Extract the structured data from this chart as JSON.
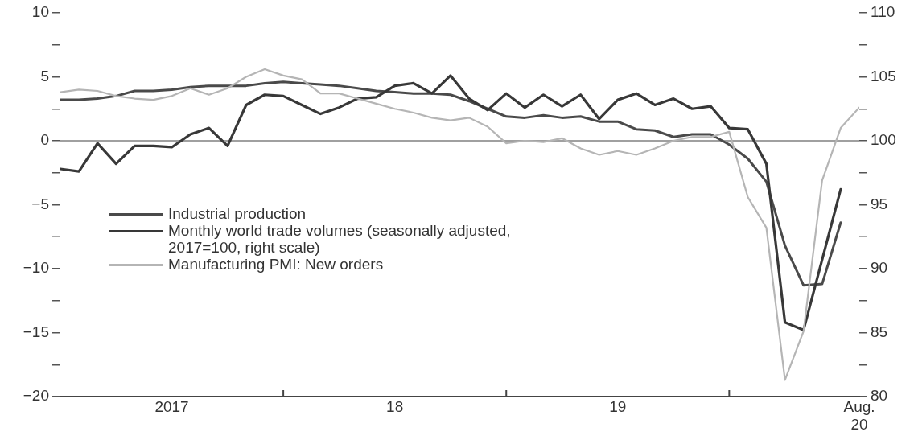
{
  "chart_data": {
    "type": "line",
    "x": [
      "2017-01",
      "2017-02",
      "2017-03",
      "2017-04",
      "2017-05",
      "2017-06",
      "2017-07",
      "2017-08",
      "2017-09",
      "2017-10",
      "2017-11",
      "2017-12",
      "2018-01",
      "2018-02",
      "2018-03",
      "2018-04",
      "2018-05",
      "2018-06",
      "2018-07",
      "2018-08",
      "2018-09",
      "2018-10",
      "2018-11",
      "2018-12",
      "2019-01",
      "2019-02",
      "2019-03",
      "2019-04",
      "2019-05",
      "2019-06",
      "2019-07",
      "2019-08",
      "2019-09",
      "2019-10",
      "2019-11",
      "2019-12",
      "2020-01",
      "2020-02",
      "2020-03",
      "2020-04",
      "2020-05",
      "2020-06",
      "2020-07",
      "2020-08"
    ],
    "series": [
      {
        "name": "Industrial production",
        "color": "#4a4a4a",
        "values": [
          3.2,
          3.2,
          3.3,
          3.5,
          3.9,
          3.9,
          4.0,
          4.2,
          4.3,
          4.3,
          4.3,
          4.5,
          4.6,
          4.5,
          4.4,
          4.3,
          4.1,
          3.9,
          3.8,
          3.7,
          3.7,
          3.6,
          3.1,
          2.5,
          1.9,
          1.8,
          2.0,
          1.8,
          1.9,
          1.5,
          1.5,
          0.9,
          0.8,
          0.3,
          0.5,
          0.5,
          -0.3,
          -1.4,
          -3.2,
          -8.2,
          -11.3,
          -11.2,
          -6.4,
          null
        ]
      },
      {
        "name": "Monthly world trade volumes (seasonally adjusted, 2017=100, right scale)",
        "color": "#383838",
        "axis": "y2",
        "values": [
          97.8,
          97.6,
          99.8,
          98.2,
          99.6,
          99.6,
          99.5,
          100.5,
          101.0,
          99.6,
          102.8,
          103.6,
          103.5,
          102.8,
          102.1,
          102.6,
          103.3,
          103.4,
          104.3,
          104.5,
          103.7,
          105.1,
          103.3,
          102.4,
          103.7,
          102.6,
          103.6,
          102.7,
          103.6,
          101.7,
          103.2,
          103.7,
          102.8,
          103.3,
          102.5,
          102.7,
          101.0,
          100.9,
          98.2,
          85.8,
          85.2,
          90.7,
          96.2,
          null
        ]
      },
      {
        "name": "Manufacturing PMI: New orders",
        "color": "#b5b5b5",
        "values": [
          3.8,
          4.0,
          3.9,
          3.5,
          3.3,
          3.2,
          3.5,
          4.1,
          3.6,
          4.1,
          5.0,
          5.6,
          5.1,
          4.8,
          3.7,
          3.7,
          3.3,
          2.9,
          2.5,
          2.2,
          1.8,
          1.6,
          1.8,
          1.1,
          -0.2,
          0.0,
          -0.1,
          0.2,
          -0.6,
          -1.1,
          -0.8,
          -1.1,
          -0.6,
          0.0,
          0.3,
          0.3,
          0.7,
          -4.4,
          -6.8,
          -18.7,
          -14.9,
          -3.1,
          1.0,
          2.6
        ]
      }
    ],
    "xlim": [
      "2017-01",
      "2020-08"
    ],
    "xticks": [
      {
        "value": "2017-07",
        "label": "2017"
      },
      {
        "value": "2018-01",
        "label": null
      },
      {
        "value": "2018-07",
        "label": "18"
      },
      {
        "value": "2019-01",
        "label": null
      },
      {
        "value": "2019-07",
        "label": "19"
      },
      {
        "value": "2020-01",
        "label": null
      },
      {
        "value": "2020-08",
        "label": "Aug.\n20"
      }
    ],
    "ylim": [
      -20,
      10
    ],
    "yticks": [
      {
        "value": -20,
        "label": "−20"
      },
      {
        "value": -17.5,
        "label": null
      },
      {
        "value": -15,
        "label": "−15"
      },
      {
        "value": -12.5,
        "label": null
      },
      {
        "value": -10,
        "label": "−10"
      },
      {
        "value": -7.5,
        "label": null
      },
      {
        "value": -5,
        "label": "−5"
      },
      {
        "value": -2.5,
        "label": null
      },
      0,
      {
        "value": 2.5,
        "label": null
      },
      5,
      {
        "value": 7.5,
        "label": null
      },
      10
    ],
    "y2lim": [
      80,
      110
    ],
    "y2ticks": [
      80,
      {
        "value": 82.5,
        "label": null
      },
      85,
      {
        "value": 87.5,
        "label": null
      },
      90,
      {
        "value": 92.5,
        "label": null
      },
      95,
      {
        "value": 97.5,
        "label": null
      },
      100,
      {
        "value": 102.5,
        "label": null
      },
      105,
      {
        "value": 107.5,
        "label": null
      },
      110
    ],
    "ref_lines": [
      {
        "axis": "y",
        "value": 0,
        "color": "#808080"
      }
    ],
    "legend": "left",
    "grid": false,
    "marker": "none",
    "line_style": "solid"
  }
}
